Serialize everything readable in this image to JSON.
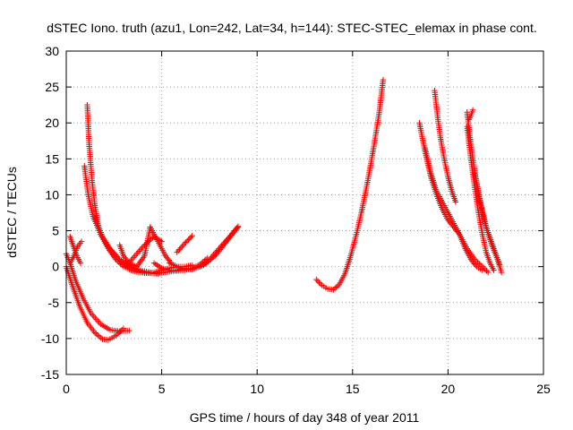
{
  "chart_data": {
    "type": "scatter",
    "title": "dSTEC Iono. truth (azu1, Lon=242, Lat=34, h=144): STEC-STEC_elemax in phase cont.",
    "xlabel": "GPS time / hours of day 348 of year 2011",
    "ylabel": "dSTEC  / TECUs",
    "xlim": [
      0,
      25
    ],
    "ylim": [
      -15,
      30
    ],
    "xticks": [
      0,
      5,
      10,
      15,
      20,
      25
    ],
    "yticks": [
      -15,
      -10,
      -5,
      0,
      5,
      10,
      15,
      20,
      25,
      30
    ],
    "grid": true,
    "marker": "+",
    "color": "#ff0000",
    "series": [
      {
        "x": [
          0.0,
          0.3,
          0.7,
          1.1,
          1.5,
          1.9,
          2.2,
          2.6,
          3.0
        ],
        "y": [
          0.0,
          -2.5,
          -5.5,
          -7.8,
          -9.2,
          -10.1,
          -10.2,
          -9.6,
          -8.6
        ]
      },
      {
        "x": [
          0.2,
          0.5,
          0.9,
          1.3,
          1.8,
          2.3,
          2.8,
          3.3
        ],
        "y": [
          0.5,
          -2.0,
          -4.5,
          -6.5,
          -8.0,
          -8.8,
          -9.0,
          -8.9
        ]
      },
      {
        "x": [
          0.0,
          0.2,
          0.4,
          0.6,
          0.8
        ],
        "y": [
          1.8,
          0.5,
          1.5,
          2.8,
          3.5
        ]
      },
      {
        "x": [
          0.2,
          0.35,
          0.55,
          0.75
        ],
        "y": [
          4.2,
          3.0,
          1.5,
          0.5
        ]
      },
      {
        "x": [
          1.1,
          1.2,
          1.35,
          1.5,
          1.7,
          2.0,
          2.4,
          2.8,
          3.3,
          3.8,
          4.3,
          4.8
        ],
        "y": [
          22.5,
          17.0,
          12.0,
          8.5,
          5.5,
          3.5,
          2.0,
          0.8,
          0.0,
          -0.6,
          -0.9,
          -1.0
        ]
      },
      {
        "x": [
          0.95,
          1.15,
          1.4,
          1.8,
          2.3,
          2.8,
          3.4,
          4.0,
          4.6,
          5.2,
          5.8,
          6.2
        ],
        "y": [
          14.0,
          10.0,
          7.0,
          4.5,
          2.5,
          1.0,
          0.0,
          -0.6,
          -0.9,
          -0.8,
          -0.5,
          -0.2
        ]
      },
      {
        "x": [
          1.5,
          1.8,
          2.2,
          2.6,
          3.0,
          3.4,
          3.8,
          4.2,
          4.6,
          5.0,
          5.4,
          5.8,
          6.2,
          6.6
        ],
        "y": [
          7.0,
          4.5,
          2.5,
          1.0,
          0.0,
          -0.5,
          -0.8,
          -0.9,
          -0.8,
          -0.5,
          -0.2,
          0.0,
          0.0,
          0.2
        ]
      },
      {
        "x": [
          2.8,
          3.0,
          3.3,
          3.7,
          4.1,
          4.4
        ],
        "y": [
          3.0,
          1.5,
          0.5,
          0.0,
          1.5,
          5.5
        ]
      },
      {
        "x": [
          4.4,
          4.8,
          5.2,
          5.5
        ],
        "y": [
          5.5,
          3.5,
          1.5,
          0.5
        ]
      },
      {
        "x": [
          3.1,
          3.6,
          4.1,
          4.6,
          5.0
        ],
        "y": [
          0.0,
          1.5,
          3.0,
          4.2,
          3.5
        ]
      },
      {
        "x": [
          4.6,
          5.0,
          5.4,
          5.8,
          6.2,
          6.6,
          7.0,
          7.4
        ],
        "y": [
          0.5,
          -0.2,
          -0.5,
          -0.6,
          -0.5,
          -0.2,
          0.3,
          1.2
        ]
      },
      {
        "x": [
          5.4,
          6.0,
          6.6,
          7.2,
          7.8,
          8.4,
          9.0
        ],
        "y": [
          0.5,
          -0.2,
          -0.4,
          0.2,
          1.5,
          3.5,
          5.5
        ]
      },
      {
        "x": [
          5.8,
          6.2,
          6.6
        ],
        "y": [
          2.0,
          3.2,
          4.3
        ]
      },
      {
        "x": [
          7.0,
          7.5,
          8.0,
          8.5,
          9.0
        ],
        "y": [
          0.0,
          1.0,
          2.5,
          4.0,
          5.6
        ]
      },
      {
        "x": [
          13.1,
          13.4,
          13.7,
          14.0,
          14.3,
          14.6,
          14.9,
          15.2,
          15.5,
          15.8,
          16.1,
          16.4,
          16.6
        ],
        "y": [
          -1.8,
          -2.6,
          -3.1,
          -3.2,
          -2.5,
          -1.0,
          1.5,
          4.5,
          8.0,
          12.0,
          16.5,
          21.5,
          26.0
        ]
      },
      {
        "x": [
          18.5,
          18.8,
          19.1,
          19.4,
          19.7,
          20.0,
          20.3,
          20.6,
          20.9,
          21.2,
          21.5,
          21.8
        ],
        "y": [
          20.0,
          16.0,
          12.5,
          10.0,
          8.0,
          6.5,
          5.5,
          4.5,
          2.5,
          1.0,
          0.0,
          -0.5
        ]
      },
      {
        "x": [
          18.8,
          19.1,
          19.4,
          19.8,
          20.2,
          20.6,
          21.0,
          21.4,
          21.8,
          22.1
        ],
        "y": [
          16.5,
          13.0,
          10.5,
          8.5,
          6.5,
          4.5,
          2.5,
          1.0,
          0.0,
          -0.8
        ]
      },
      {
        "x": [
          19.3,
          19.45,
          19.6,
          19.8,
          20.0,
          20.2,
          20.4
        ],
        "y": [
          24.5,
          21.0,
          18.0,
          15.0,
          12.5,
          10.5,
          9.0
        ]
      },
      {
        "x": [
          21.0,
          21.15,
          21.3,
          21.45,
          21.6,
          21.8,
          22.0,
          22.2,
          22.4,
          22.6,
          22.7
        ],
        "y": [
          21.5,
          18.0,
          15.0,
          12.5,
          10.0,
          7.5,
          5.5,
          4.0,
          2.5,
          1.0,
          0.3
        ]
      },
      {
        "x": [
          21.0,
          21.2,
          21.4,
          21.6,
          21.8,
          22.0,
          22.2,
          22.4
        ],
        "y": [
          19.5,
          15.0,
          11.0,
          7.5,
          4.5,
          2.0,
          0.5,
          -0.5
        ]
      },
      {
        "x": [
          21.1,
          21.2,
          21.3
        ],
        "y": [
          20.5,
          21.0,
          21.8
        ]
      },
      {
        "x": [
          21.4,
          21.7,
          22.0,
          22.3,
          22.6,
          22.8
        ],
        "y": [
          13.0,
          9.0,
          5.5,
          3.0,
          1.0,
          -0.8
        ]
      }
    ]
  }
}
